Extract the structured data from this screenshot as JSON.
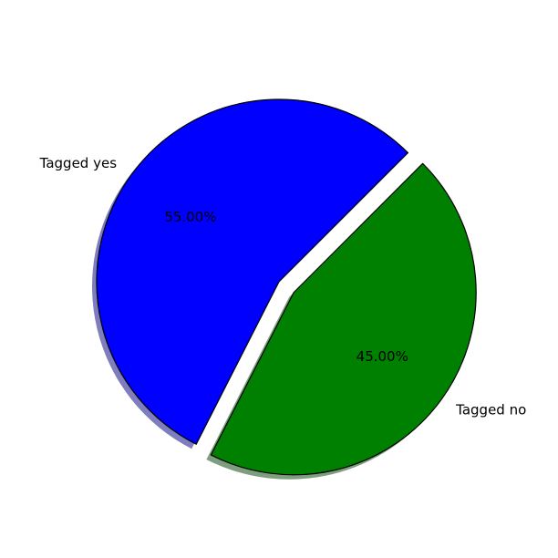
{
  "chart_data": {
    "type": "pie",
    "title": "",
    "slices": [
      {
        "label": "Tagged yes",
        "value": 55,
        "percent_label": "55.00%",
        "color": "#0000ff",
        "exploded": false
      },
      {
        "label": "Tagged no",
        "value": 45,
        "percent_label": "45.00%",
        "color": "#008000",
        "exploded": true
      }
    ],
    "shadow": true,
    "edge_color": "#000000",
    "start_angle_deg": 45,
    "direction": "counterclockwise"
  }
}
